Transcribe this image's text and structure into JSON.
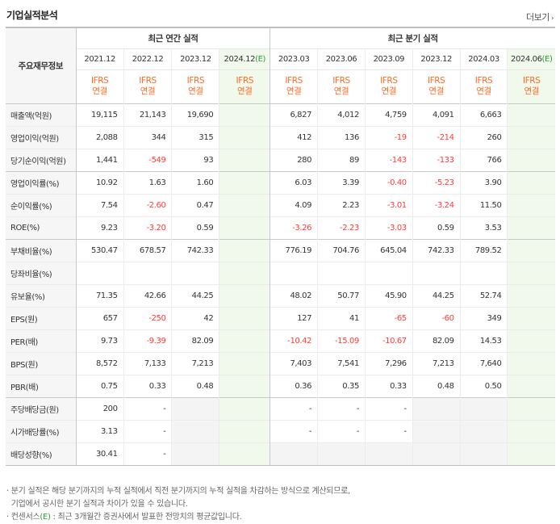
{
  "title": "기업실적분석",
  "more_label": "더보기",
  "header": {
    "corner": "주요재무정보",
    "annual_group": "최근 연간 실적",
    "quarter_group": "최근 분기 실적",
    "annual_periods": [
      "2021.12",
      "2022.12",
      "2023.12",
      "2024.12"
    ],
    "quarter_periods": [
      "2023.03",
      "2023.06",
      "2023.09",
      "2023.12",
      "2024.03",
      "2024.06"
    ],
    "est_mark": "(E)",
    "ifrs_label": "IFRS",
    "consolidated_label": "연결"
  },
  "rows": [
    {
      "label": "매출액(억원)",
      "values": [
        "19,115",
        "21,143",
        "19,690",
        "",
        "6,827",
        "4,012",
        "4,759",
        "4,091",
        "6,663",
        ""
      ]
    },
    {
      "label": "영업이익(억원)",
      "values": [
        "2,088",
        "344",
        "315",
        "",
        "412",
        "136",
        "-19",
        "-214",
        "260",
        ""
      ]
    },
    {
      "label": "당기순이익(억원)",
      "values": [
        "1,441",
        "-549",
        "93",
        "",
        "280",
        "89",
        "-143",
        "-133",
        "766",
        ""
      ]
    },
    {
      "label": "영업이익률(%)",
      "values": [
        "10.92",
        "1.63",
        "1.60",
        "",
        "6.03",
        "3.39",
        "-0.40",
        "-5.23",
        "3.90",
        ""
      ]
    },
    {
      "label": "순이익률(%)",
      "values": [
        "7.54",
        "-2.60",
        "0.47",
        "",
        "4.09",
        "2.23",
        "-3.01",
        "-3.24",
        "11.50",
        ""
      ]
    },
    {
      "label": "ROE(%)",
      "values": [
        "9.23",
        "-3.20",
        "0.59",
        "",
        "-3.26",
        "-2.23",
        "-3.03",
        "0.59",
        "3.53",
        ""
      ]
    },
    {
      "label": "부채비율(%)",
      "values": [
        "530.47",
        "678.57",
        "742.33",
        "",
        "776.19",
        "704.76",
        "645.04",
        "742.33",
        "789.52",
        ""
      ]
    },
    {
      "label": "당좌비율(%)",
      "values": [
        "",
        "",
        "",
        "",
        "",
        "",
        "",
        "",
        "",
        ""
      ]
    },
    {
      "label": "유보율(%)",
      "values": [
        "71.35",
        "42.66",
        "44.25",
        "",
        "48.02",
        "50.77",
        "45.90",
        "44.25",
        "52.74",
        ""
      ]
    },
    {
      "label": "EPS(원)",
      "values": [
        "657",
        "-250",
        "42",
        "",
        "127",
        "41",
        "-65",
        "-60",
        "349",
        ""
      ]
    },
    {
      "label": "PER(배)",
      "values": [
        "9.73",
        "-9.39",
        "82.09",
        "",
        "-10.42",
        "-15.09",
        "-10.67",
        "82.09",
        "14.53",
        ""
      ]
    },
    {
      "label": "BPS(원)",
      "values": [
        "8,572",
        "7,133",
        "7,213",
        "",
        "7,403",
        "7,541",
        "7,296",
        "7,213",
        "7,640",
        ""
      ]
    },
    {
      "label": "PBR(배)",
      "values": [
        "0.75",
        "0.33",
        "0.48",
        "",
        "0.36",
        "0.35",
        "0.33",
        "0.48",
        "0.50",
        ""
      ]
    },
    {
      "label": "주당배당금(원)",
      "values": [
        "200",
        "-",
        "",
        "",
        "-",
        "-",
        "-",
        "",
        "",
        ""
      ]
    },
    {
      "label": "시가배당률(%)",
      "values": [
        "3.13",
        "-",
        "",
        "",
        "-",
        "-",
        "-",
        "",
        "",
        ""
      ]
    },
    {
      "label": "배당성향(%)",
      "values": [
        "30.41",
        "-",
        "",
        "",
        "",
        "",
        "",
        "",
        "",
        ""
      ]
    }
  ],
  "notes": [
    "분기 실적은 해당 분기까지의 누적 실적에서 직전 분기까지의 누적 실적을 차감하는 방식으로 계산되므로,",
    "기업에서 공시한 분기 실적과 차이가 있을 수 있습니다.",
    "컨센서스",
    "(E)",
    ": 최근 3개월간 증권사에서 발표한 전망치의 평균값입니다."
  ],
  "colors": {
    "negative": "#ff3b3b",
    "ifrs": "#ff6a1f",
    "estimate_bg": "#f1f8ec",
    "estimate_mark": "#2e9e3a"
  }
}
